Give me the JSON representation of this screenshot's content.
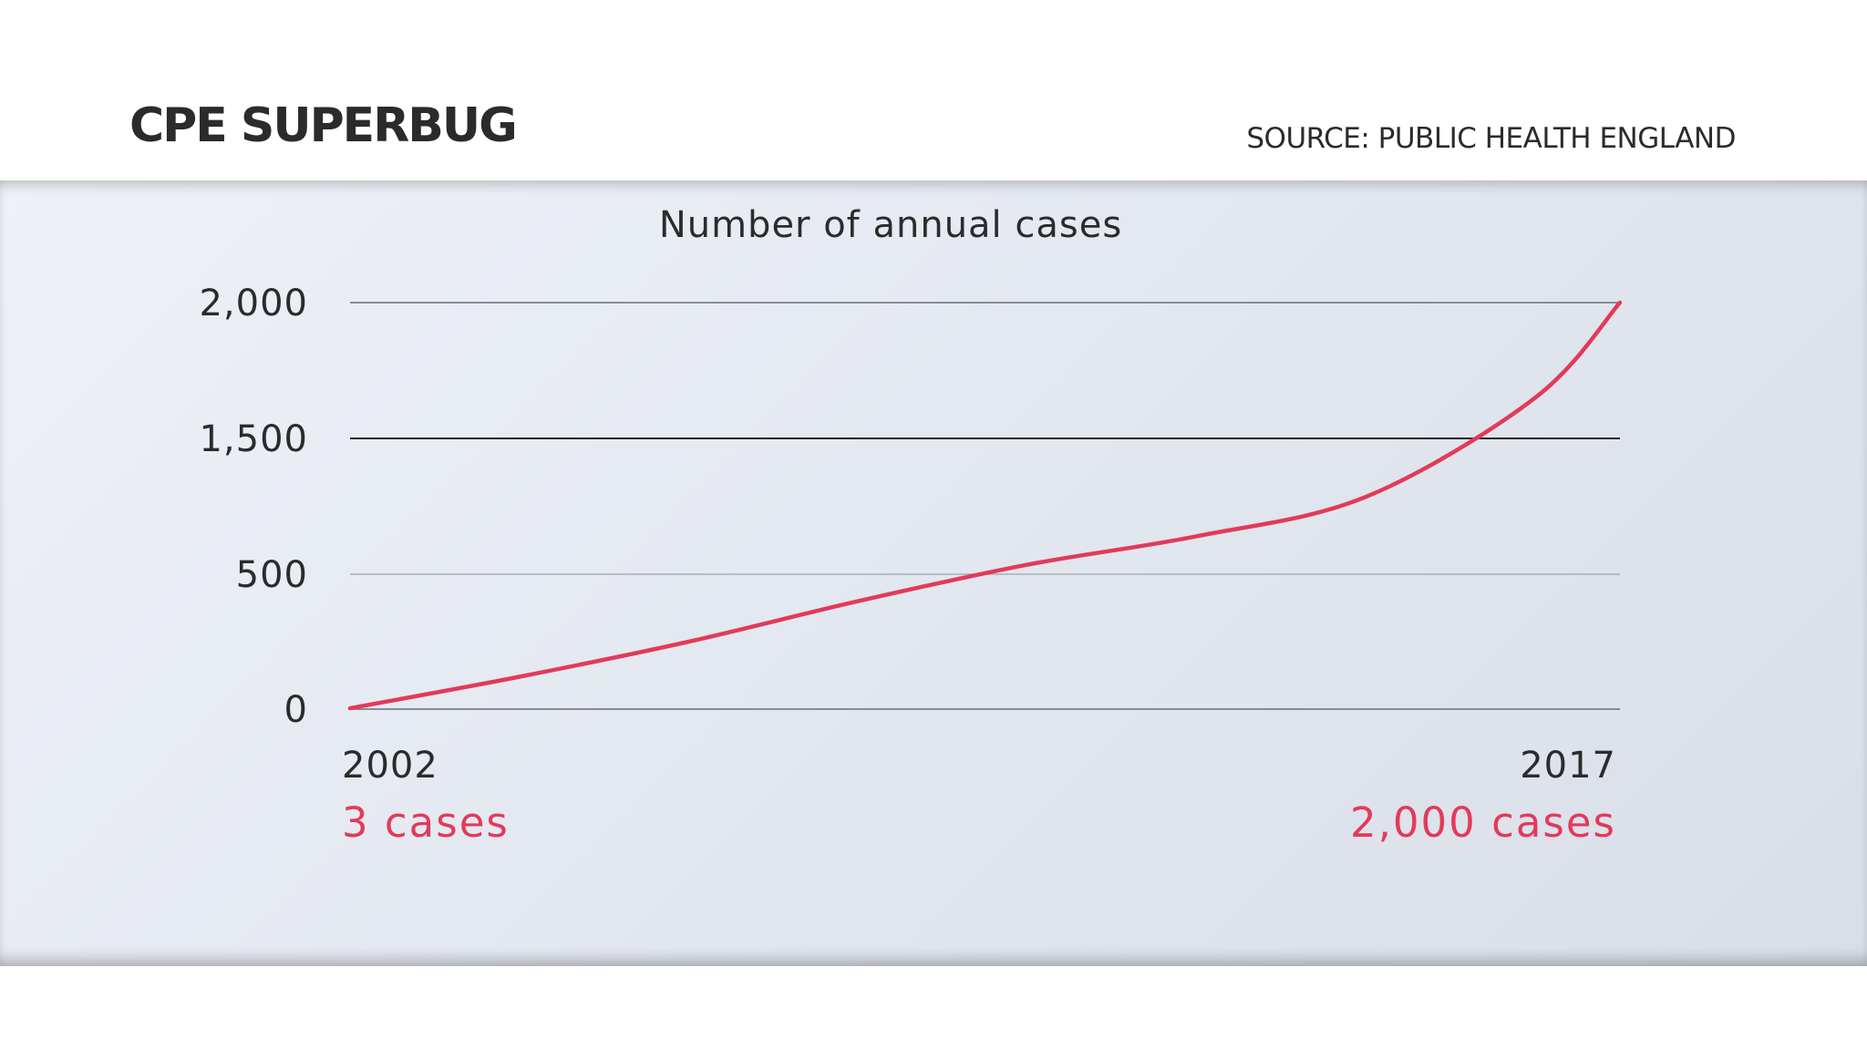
{
  "header": {
    "title": "CPE SUPERBUG",
    "source": "SOURCE: PUBLIC HEALTH ENGLAND"
  },
  "colors": {
    "accent": "#e23a5a",
    "text": "#2b2b2b"
  },
  "chart_data": {
    "type": "line",
    "title": "Number of annual cases",
    "xlabel": "",
    "ylabel": "",
    "grid": true,
    "y_ticks": [
      0,
      500,
      1500,
      2000
    ],
    "y_tick_labels": [
      "0",
      "500",
      "1,500",
      "2,000"
    ],
    "ylim": [
      0,
      2000
    ],
    "xlim": [
      2002,
      2017
    ],
    "x_tick_labels": [
      "2002",
      "2017"
    ],
    "series": [
      {
        "x": [
          2002,
          2004,
          2006,
          2008,
          2010,
          2012,
          2014,
          2016,
          2017
        ],
        "y": [
          3,
          120,
          250,
          400,
          570,
          780,
          1070,
          1650,
          2000
        ]
      }
    ],
    "annotations": [
      {
        "x": 2002,
        "text": "3 cases"
      },
      {
        "x": 2017,
        "text": "2,000 cases"
      }
    ]
  }
}
